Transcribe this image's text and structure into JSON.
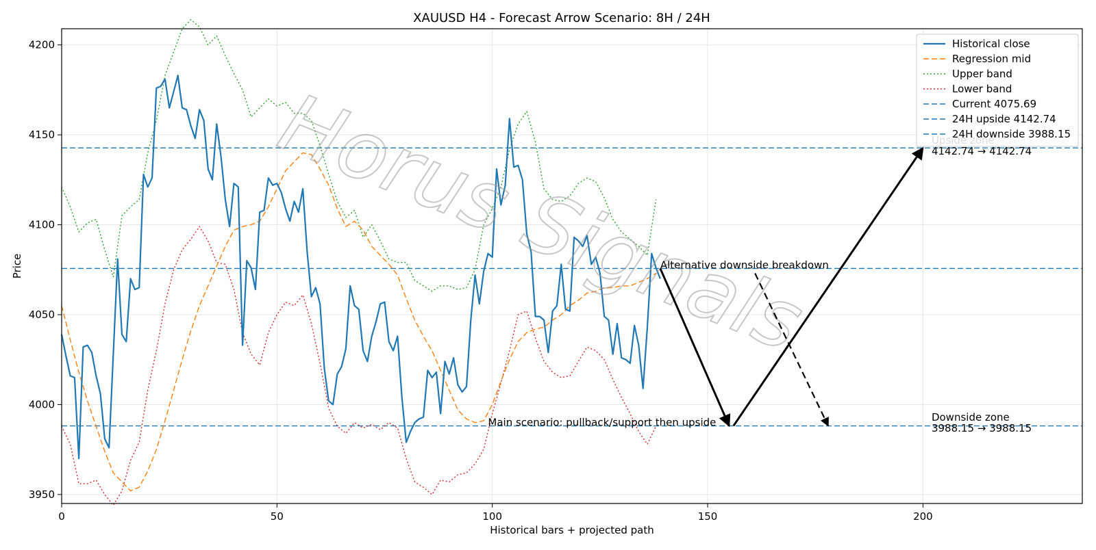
{
  "chart_data": {
    "type": "line",
    "title": "XAUUSD H4 - Forecast Arrow Scenario: 8H / 24H",
    "xlabel": "Historical bars + projected path",
    "ylabel": "Price",
    "xlim": [
      0,
      237
    ],
    "ylim": [
      3945,
      4209
    ],
    "x_ticks": [
      0,
      50,
      100,
      150,
      200
    ],
    "y_ticks": [
      3950,
      4000,
      4050,
      4100,
      4150,
      4200
    ],
    "grid": true,
    "legend_position": "top-right",
    "legend": [
      {
        "label": "Historical close",
        "color": "#1f77b4",
        "style": "solid"
      },
      {
        "label": "Regression mid",
        "color": "#ff7f0e",
        "style": "dashed"
      },
      {
        "label": "Upper band",
        "color": "#2ca02c",
        "style": "dotted"
      },
      {
        "label": "Lower band",
        "color": "#d62728",
        "style": "dotted"
      },
      {
        "label": "Current 4075.69",
        "color": "#1f77b4",
        "style": "dashed"
      },
      {
        "label": "24H upside 4142.74",
        "color": "#1f77b4",
        "style": "dashed"
      },
      {
        "label": "24H downside 3988.15",
        "color": "#1f77b4",
        "style": "dashed"
      }
    ],
    "hlines": [
      {
        "name": "Current",
        "value": 4075.69,
        "color": "#1f77b4"
      },
      {
        "name": "24H upside",
        "value": 4142.74,
        "color": "#1f77b4"
      },
      {
        "name": "24H downside",
        "value": 3988.15,
        "color": "#1f77b4"
      }
    ],
    "series": [
      {
        "name": "Historical close",
        "color": "#1f77b4",
        "style": "solid",
        "x": [
          0,
          1,
          2,
          3,
          4,
          5,
          6,
          7,
          8,
          9,
          10,
          11,
          12,
          13,
          14,
          15,
          16,
          17,
          18,
          19,
          20,
          21,
          22,
          23,
          24,
          25,
          26,
          27,
          28,
          29,
          30,
          31,
          32,
          33,
          34,
          35,
          36,
          37,
          38,
          39,
          40,
          41,
          42,
          43,
          44,
          45,
          46,
          47,
          48,
          49,
          50,
          51,
          52,
          53,
          54,
          55,
          56,
          57,
          58,
          59,
          60,
          61,
          62,
          63,
          64,
          65,
          66,
          67,
          68,
          69,
          70,
          71,
          72,
          73,
          74,
          75,
          76,
          77,
          78,
          79,
          80,
          81,
          82,
          83,
          84,
          85,
          86,
          87,
          88,
          89,
          90,
          91,
          92,
          93,
          94,
          95,
          96,
          97,
          98,
          99,
          100,
          101,
          102,
          103,
          104,
          105,
          106,
          107,
          108,
          109,
          110,
          111,
          112,
          113,
          114,
          115,
          116,
          117,
          118,
          119,
          120,
          121,
          122,
          123,
          124,
          125,
          126,
          127,
          128,
          129,
          130,
          131,
          132,
          133,
          134,
          135,
          136,
          137,
          138,
          139
        ],
        "values": [
          4039,
          4027,
          4016,
          4015,
          3970,
          4032,
          4033,
          4029,
          4016,
          4006,
          3981,
          3976,
          4028,
          4081,
          4039,
          4035,
          4070,
          4064,
          4065,
          4128,
          4121,
          4126,
          4176,
          4177,
          4181,
          4165,
          4174,
          4183,
          4165,
          4164,
          4155,
          4148,
          4164,
          4158,
          4131,
          4125,
          4156,
          4138,
          4114,
          4099,
          4123,
          4121,
          4033,
          4080,
          4076,
          4064,
          4107,
          4108,
          4126,
          4122,
          4123,
          4118,
          4109,
          4102,
          4113,
          4107,
          4120,
          4085,
          4060,
          4065,
          4056,
          4020,
          4002,
          4000,
          4017,
          4021,
          4031,
          4066,
          4055,
          4053,
          4030,
          4024,
          4038,
          4046,
          4056,
          4057,
          4035,
          4030,
          4038,
          4004,
          3979,
          3985,
          3990,
          3992,
          3993,
          4019,
          4015,
          4018,
          3995,
          4024,
          4017,
          4026,
          4011,
          4007,
          4010,
          4047,
          4072,
          4056,
          4074,
          4084,
          4082,
          4131,
          4111,
          4122,
          4159,
          4132,
          4133,
          4125,
          4095,
          4085,
          4049,
          4049,
          4047,
          4029,
          4052,
          4055,
          4078,
          4053,
          4052,
          4093,
          4091,
          4088,
          4094,
          4078,
          4082,
          4073,
          4049,
          4047,
          4028,
          4045,
          4026,
          4025,
          4023,
          4044,
          4033,
          4009,
          4043,
          4084,
          4076,
          4070
        ]
      },
      {
        "name": "Regression mid",
        "color": "#ff7f0e",
        "style": "dashed",
        "x": [
          0,
          2,
          4,
          6,
          8,
          10,
          12,
          14,
          16,
          18,
          20,
          22,
          24,
          26,
          28,
          30,
          32,
          34,
          36,
          38,
          40,
          42,
          44,
          46,
          48,
          50,
          52,
          54,
          56,
          58,
          60,
          62,
          64,
          66,
          68,
          70,
          72,
          74,
          76,
          78,
          80,
          82,
          84,
          86,
          88,
          90,
          92,
          94,
          96,
          98,
          100,
          102,
          104,
          106,
          108,
          110,
          112,
          114,
          116,
          118,
          120,
          122,
          124,
          126,
          128,
          130,
          132,
          134,
          136,
          138
        ],
        "values": [
          4055,
          4036,
          4018,
          4002,
          3988,
          3974,
          3962,
          3957,
          3952,
          3954,
          3963,
          3975,
          3991,
          4008,
          4025,
          4041,
          4055,
          4066,
          4077,
          4088,
          4097,
          4099,
          4100,
          4102,
          4110,
          4120,
          4130,
          4135,
          4140,
          4139,
          4131,
          4122,
          4109,
          4099,
          4102,
          4097,
          4088,
          4083,
          4078,
          4072,
          4059,
          4047,
          4038,
          4030,
          4019,
          4008,
          3997,
          3992,
          3990,
          3991,
          4000,
          4013,
          4025,
          4035,
          4040,
          4042,
          4043,
          4047,
          4050,
          4055,
          4058,
          4062,
          4063,
          4065,
          4065,
          4066,
          4066,
          4068,
          4070,
          4073
        ]
      },
      {
        "name": "Upper band",
        "color": "#2ca02c",
        "style": "dotted",
        "x": [
          0,
          2,
          4,
          6,
          8,
          10,
          12,
          14,
          16,
          18,
          20,
          22,
          24,
          26,
          28,
          30,
          32,
          34,
          36,
          38,
          40,
          42,
          44,
          46,
          48,
          50,
          52,
          54,
          56,
          58,
          60,
          62,
          64,
          66,
          68,
          70,
          72,
          74,
          76,
          78,
          80,
          82,
          84,
          86,
          88,
          90,
          92,
          94,
          96,
          98,
          100,
          102,
          104,
          106,
          108,
          110,
          112,
          114,
          116,
          118,
          120,
          122,
          124,
          126,
          128,
          130,
          132,
          134,
          136,
          138
        ],
        "values": [
          4121,
          4110,
          4096,
          4101,
          4103,
          4086,
          4071,
          4105,
          4110,
          4114,
          4140,
          4158,
          4183,
          4196,
          4209,
          4214,
          4210,
          4200,
          4205,
          4194,
          4184,
          4175,
          4160,
          4165,
          4170,
          4166,
          4168,
          4162,
          4162,
          4158,
          4144,
          4128,
          4113,
          4104,
          4108,
          4093,
          4100,
          4091,
          4081,
          4079,
          4079,
          4069,
          4066,
          4063,
          4066,
          4066,
          4064,
          4065,
          4075,
          4100,
          4109,
          4121,
          4142,
          4156,
          4163,
          4146,
          4120,
          4114,
          4113,
          4116,
          4123,
          4126,
          4124,
          4115,
          4103,
          4096,
          4092,
          4088,
          4083,
          4114
        ]
      },
      {
        "name": "Lower band",
        "color": "#d62728",
        "style": "dotted",
        "x": [
          0,
          2,
          4,
          6,
          8,
          10,
          12,
          14,
          16,
          18,
          20,
          22,
          24,
          26,
          28,
          30,
          32,
          34,
          36,
          38,
          40,
          42,
          44,
          46,
          48,
          50,
          52,
          54,
          56,
          58,
          60,
          62,
          64,
          66,
          68,
          70,
          72,
          74,
          76,
          78,
          80,
          82,
          84,
          86,
          88,
          90,
          92,
          94,
          96,
          98,
          100,
          102,
          104,
          106,
          108,
          110,
          112,
          114,
          116,
          118,
          120,
          122,
          124,
          126,
          128,
          130,
          132,
          134,
          136,
          138
        ],
        "values": [
          3988,
          3978,
          3956,
          3956,
          3958,
          3950,
          3944,
          3952,
          3969,
          3979,
          4008,
          4030,
          4056,
          4075,
          4086,
          4092,
          4099,
          4091,
          4079,
          4078,
          4064,
          4040,
          4028,
          4022,
          4040,
          4050,
          4057,
          4055,
          4061,
          4045,
          4023,
          3998,
          3988,
          3984,
          3990,
          3987,
          3989,
          3986,
          3990,
          3987,
          3970,
          3957,
          3954,
          3950,
          3958,
          3957,
          3961,
          3962,
          3967,
          3975,
          3995,
          4012,
          4030,
          4050,
          4052,
          4037,
          4024,
          4018,
          4015,
          4016,
          4024,
          4032,
          4030,
          4025,
          4014,
          4004,
          3995,
          3985,
          3978,
          3988
        ]
      }
    ],
    "annotations": [
      {
        "label": "Alternative downside breakdown",
        "x": 139,
        "y": 4075.69
      },
      {
        "label": "Main scenario: pullback/support then upside",
        "x": 99,
        "y": 3988.15
      },
      {
        "label": "Upside zone",
        "x": 202,
        "y": 4145
      },
      {
        "label": "4142.74 → 4142.74",
        "x": 202,
        "y": 4139
      },
      {
        "label": "Downside zone",
        "x": 202,
        "y": 3991
      },
      {
        "label": "3988.15 → 3988.15",
        "x": 202,
        "y": 3985
      }
    ],
    "arrows": [
      {
        "name": "main-leg-1",
        "from": [
          139,
          4075.69
        ],
        "to": [
          155,
          3988.15
        ],
        "style": "solid"
      },
      {
        "name": "main-leg-2",
        "from": [
          156,
          3988.15
        ],
        "to": [
          200,
          4142.74
        ],
        "style": "solid"
      },
      {
        "name": "alternative",
        "from": [
          161,
          4073
        ],
        "to": [
          178,
          3988.15
        ],
        "style": "dashed"
      }
    ],
    "watermark": "Horus Signals"
  }
}
